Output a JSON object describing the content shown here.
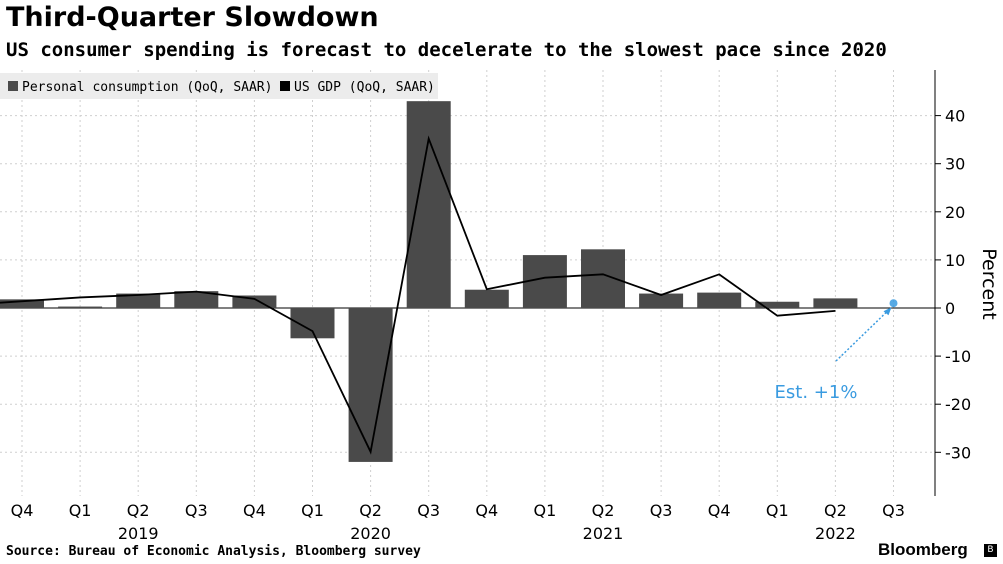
{
  "header": {
    "title": "Third-Quarter Slowdown",
    "subtitle": "US consumer spending is forecast to decelerate to the slowest pace since 2020"
  },
  "footer": {
    "source": "Source: Bureau of Economic Analysis, Bloomberg survey",
    "brand": "Bloomberg"
  },
  "colors": {
    "bar": "#4a4a4a",
    "line": "#000000",
    "estimate": "#3a9be0",
    "grid": "#cfcfcf",
    "legend_bg": "#ececec"
  },
  "chart_data": {
    "type": "bar",
    "categories": [
      "Q4",
      "Q1",
      "Q2",
      "Q3",
      "Q4",
      "Q1",
      "Q2",
      "Q3",
      "Q4",
      "Q1",
      "Q2",
      "Q3",
      "Q4",
      "Q1",
      "Q2",
      "Q3"
    ],
    "year_labels": [
      {
        "label": "2019",
        "index": 2
      },
      {
        "label": "2020",
        "index": 6
      },
      {
        "label": "2021",
        "index": 10
      },
      {
        "label": "2022",
        "index": 14
      }
    ],
    "series": [
      {
        "name": "Personal consumption (QoQ, SAAR)",
        "type": "bar",
        "color": "#4a4a4a",
        "values": [
          1.8,
          0.3,
          3.0,
          3.5,
          2.6,
          -6.3,
          -32.0,
          43.0,
          3.8,
          11.0,
          12.2,
          3.0,
          3.2,
          1.3,
          2.0,
          null
        ]
      },
      {
        "name": "US GDP (QoQ, SAAR)",
        "type": "line",
        "color": "#000000",
        "values": [
          1.1,
          2.2,
          2.7,
          3.4,
          1.9,
          -4.8,
          -29.9,
          35.2,
          3.9,
          6.3,
          7.0,
          2.7,
          7.0,
          -1.6,
          -0.6,
          null
        ]
      }
    ],
    "estimate": {
      "index": 15,
      "value": 1.0,
      "label": "Est. +1%"
    },
    "ylabel": "Percent",
    "yticks": [
      -30,
      -20,
      -10,
      0,
      10,
      20,
      30,
      40
    ],
    "ylim": [
      -38,
      49
    ],
    "grid": true,
    "legend_position": "top-left"
  }
}
